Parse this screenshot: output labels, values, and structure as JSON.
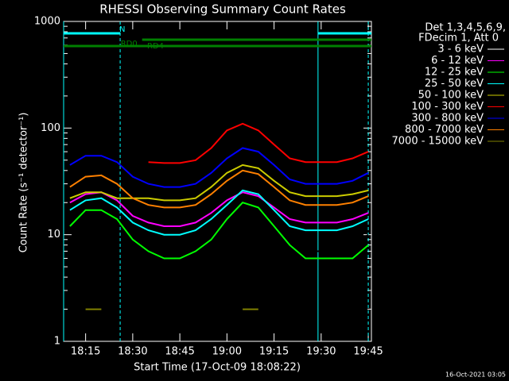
{
  "chart_data": {
    "type": "line",
    "title": "RHESSI Observing Summary Count Rates",
    "x_label": "Start Time (17-Oct-09 18:08:22)",
    "y_label": "Count Rate (s⁻¹ detector⁻¹)",
    "legend_header": [
      "Det 1,3,4,5,6,9,",
      "FDecim 1, Att 0"
    ],
    "footer": "16-Oct-2021 03:05",
    "log_y": true,
    "x": [
      "18:10",
      "18:15",
      "18:20",
      "18:25",
      "18:30",
      "18:35",
      "18:40",
      "18:45",
      "18:50",
      "18:55",
      "19:00",
      "19:05",
      "19:10",
      "19:15",
      "19:20",
      "19:25",
      "19:30",
      "19:35",
      "19:40",
      "19:45"
    ],
    "xlim": [
      "18:08",
      "19:46"
    ],
    "xticks": [
      "18:15",
      "18:30",
      "18:45",
      "19:00",
      "19:15",
      "19:30",
      "19:45"
    ],
    "ylim": [
      1,
      1000
    ],
    "yticks": [
      1,
      10,
      100,
      1000
    ],
    "series": [
      {
        "name": "3 - 6 keV",
        "color": "#000000",
        "values": [
          13,
          17,
          17,
          14,
          10,
          8,
          7,
          7,
          8,
          10,
          14,
          18,
          16,
          12,
          9,
          7,
          7,
          7,
          8,
          10
        ]
      },
      {
        "name": "6 - 12 keV",
        "color": "#ff00ff",
        "values": [
          20,
          24,
          25,
          21,
          15,
          13,
          12,
          12,
          13,
          16,
          21,
          25,
          23,
          18,
          14,
          13,
          13,
          13,
          14,
          16
        ]
      },
      {
        "name": "12 - 25 keV",
        "color": "#00ff00",
        "values": [
          12,
          17,
          17,
          14,
          9,
          7,
          6,
          6,
          7,
          9,
          14,
          20,
          18,
          12,
          8,
          6,
          6,
          6,
          6,
          8
        ]
      },
      {
        "name": "25 - 50 keV",
        "color": "#00ffff",
        "values": [
          17,
          21,
          22,
          18,
          13,
          11,
          10,
          10,
          11,
          14,
          19,
          26,
          24,
          17,
          12,
          11,
          11,
          11,
          12,
          14
        ]
      },
      {
        "name": "50 - 100 keV",
        "color": "#cccc00",
        "values": [
          22,
          25,
          25,
          22,
          22,
          22,
          21,
          21,
          22,
          28,
          38,
          45,
          42,
          32,
          25,
          23,
          23,
          23,
          24,
          26
        ]
      },
      {
        "name": "100 - 300 keV",
        "color": "#ff0000",
        "values": [
          null,
          null,
          null,
          null,
          null,
          48,
          47,
          47,
          50,
          65,
          95,
          110,
          95,
          70,
          52,
          48,
          48,
          48,
          52,
          60
        ]
      },
      {
        "name": "300 - 800 keV",
        "color": "#0000ff",
        "values": [
          45,
          55,
          55,
          48,
          35,
          30,
          28,
          28,
          30,
          38,
          52,
          65,
          60,
          45,
          33,
          30,
          30,
          30,
          32,
          38
        ]
      },
      {
        "name": "800 - 7000 keV",
        "color": "#ff8000",
        "values": [
          28,
          35,
          36,
          30,
          22,
          19,
          18,
          18,
          19,
          24,
          32,
          40,
          37,
          28,
          21,
          19,
          19,
          19,
          20,
          23
        ]
      },
      {
        "name": "7000 - 15000 keV",
        "color": "#808000",
        "values": [
          null,
          2,
          2,
          null,
          null,
          null,
          null,
          null,
          null,
          null,
          null,
          2,
          2,
          null,
          null,
          null,
          null,
          null,
          null,
          null
        ]
      }
    ],
    "flags": [
      {
        "label": "N",
        "color": "#00ffff",
        "intervals": [
          [
            "18:08",
            "18:26"
          ],
          [
            "19:29",
            "19:46"
          ]
        ]
      },
      {
        "label": "RD0",
        "color": "#008000",
        "intervals": [
          [
            "18:33",
            "19:46"
          ]
        ]
      },
      {
        "label": "RD4",
        "color": "#008000",
        "intervals": [
          [
            "18:08",
            "19:46"
          ]
        ]
      }
    ],
    "vlines": [
      {
        "x": "18:08",
        "dashed": false
      },
      {
        "x": "18:26",
        "dashed": true
      },
      {
        "x": "19:29",
        "dashed": false
      },
      {
        "x": "19:45",
        "dashed": true
      }
    ]
  }
}
